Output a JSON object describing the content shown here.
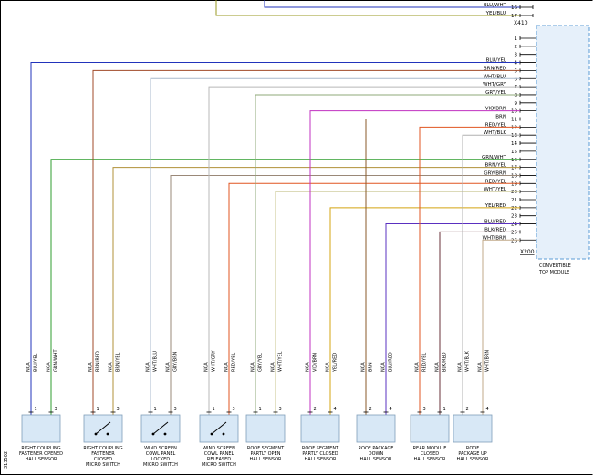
{
  "doc_number": "313502",
  "top_connector": {
    "label": "X410",
    "pins": [
      {
        "num": "16",
        "color": "BLU/WHT"
      },
      {
        "num": "17",
        "color": "YEL/BLU"
      }
    ]
  },
  "module": {
    "label_lines": [
      "CONVERTIBLE",
      "TOP MODULE"
    ],
    "connector_label": "X200",
    "pins": [
      {
        "num": "1",
        "color": ""
      },
      {
        "num": "2",
        "color": ""
      },
      {
        "num": "3",
        "color": ""
      },
      {
        "num": "4",
        "color": "BLU/YEL"
      },
      {
        "num": "5",
        "color": "BRN/RED"
      },
      {
        "num": "6",
        "color": "WHT/BLU"
      },
      {
        "num": "7",
        "color": "WHT/GRY"
      },
      {
        "num": "8",
        "color": "GRY/YEL"
      },
      {
        "num": "9",
        "color": ""
      },
      {
        "num": "10",
        "color": "VIO/BRN"
      },
      {
        "num": "11",
        "color": "BRN"
      },
      {
        "num": "12",
        "color": "RED/YEL"
      },
      {
        "num": "13",
        "color": "WHT/BLK"
      },
      {
        "num": "14",
        "color": ""
      },
      {
        "num": "15",
        "color": ""
      },
      {
        "num": "16",
        "color": "GRN/WHT"
      },
      {
        "num": "17",
        "color": "BRN/YEL"
      },
      {
        "num": "18",
        "color": "GRY/BRN"
      },
      {
        "num": "19",
        "color": "RED/YEL"
      },
      {
        "num": "20",
        "color": "WHT/YEL"
      },
      {
        "num": "21",
        "color": ""
      },
      {
        "num": "22",
        "color": "YEL/RED"
      },
      {
        "num": "23",
        "color": ""
      },
      {
        "num": "24",
        "color": "BLU/RED"
      },
      {
        "num": "25",
        "color": "BLK/RED"
      },
      {
        "num": "26",
        "color": "WHT/BRN"
      }
    ]
  },
  "components": [
    {
      "id": "right-coupling-fastener-opened-hall-sensor",
      "type": "hall-sensor",
      "label_lines": [
        "RIGHT COUPLING",
        "FASTENER OPENED",
        "HALL SENSOR"
      ],
      "wires": [
        {
          "pin": "1",
          "size": "NCA",
          "color": "BLU/YEL",
          "module_pin": 4
        },
        {
          "pin": "3",
          "size": "NCA",
          "color": "GRN/WHT",
          "module_pin": 16
        }
      ]
    },
    {
      "id": "right-coupling-fastener-closed-micro-switch",
      "type": "micro-switch",
      "label_lines": [
        "RIGHT COUPLING",
        "FASTENER",
        "CLOSED",
        "MICRO SWITCH"
      ],
      "wires": [
        {
          "pin": "1",
          "size": "NCA",
          "color": "BRN/RED",
          "module_pin": 5
        },
        {
          "pin": "3",
          "size": "NCA",
          "color": "BRN/YEL",
          "module_pin": 17
        }
      ]
    },
    {
      "id": "wind-screen-cowl-panel-locked-micro-switch",
      "type": "micro-switch",
      "label_lines": [
        "WIND SCREEN",
        "COWL PANEL",
        "LOCKED",
        "MICRO SWITCH"
      ],
      "wires": [
        {
          "pin": "1",
          "size": "NCA",
          "color": "WHT/BLU",
          "module_pin": 6
        },
        {
          "pin": "3",
          "size": "NCA",
          "color": "GRY/BRN",
          "module_pin": 18
        }
      ]
    },
    {
      "id": "wind-screen-cowl-panel-released-micro-switch",
      "type": "micro-switch",
      "label_lines": [
        "WIND SCREEN",
        "COWL PANEL",
        "RELEASED",
        "MICRO SWITCH"
      ],
      "wires": [
        {
          "pin": "1",
          "size": "NCA",
          "color": "WHT/GRY",
          "module_pin": 7
        },
        {
          "pin": "3",
          "size": "NCA",
          "color": "RED/YEL",
          "module_pin": 19
        }
      ]
    },
    {
      "id": "roof-segment-partly-open-hall-sensor",
      "type": "hall-sensor",
      "label_lines": [
        "ROOF SEGMENT",
        "PARTLY OPEN",
        "HALL SENSOR"
      ],
      "wires": [
        {
          "pin": "1",
          "size": "NCA",
          "color": "GRY/YEL",
          "module_pin": 8
        },
        {
          "pin": "3",
          "size": "NCA",
          "color": "WHT/YEL",
          "module_pin": 20
        }
      ]
    },
    {
      "id": "roof-segment-partly-closed-hall-sensor",
      "type": "hall-sensor",
      "label_lines": [
        "ROOF SEGMENT",
        "PARTLY CLOSED",
        "HALL SENSOR"
      ],
      "wires": [
        {
          "pin": "2",
          "size": "NCA",
          "color": "VIO/BRN",
          "module_pin": 10
        },
        {
          "pin": "4",
          "size": "NCA",
          "color": "YEL/RED",
          "module_pin": 22
        }
      ]
    },
    {
      "id": "roof-package-down-hall-sensor",
      "type": "hall-sensor",
      "label_lines": [
        "ROOF PACKAGE",
        "DOWN",
        "HALL SENSOR"
      ],
      "wires": [
        {
          "pin": "2",
          "size": "NCA",
          "color": "BRN",
          "module_pin": 11
        },
        {
          "pin": "4",
          "size": "NCA",
          "color": "BLU/RED",
          "module_pin": 24
        }
      ]
    },
    {
      "id": "rear-module-closed-hall-sensor",
      "type": "hall-sensor",
      "label_lines": [
        "REAR MODULE",
        "CLOSED",
        "HALL SENSOR"
      ],
      "wires": [
        {
          "pin": "3",
          "size": "NCA",
          "color": "RED/YEL",
          "module_pin": 12
        },
        {
          "pin": "1",
          "size": "NCA",
          "color": "BLK/RED",
          "module_pin": 25
        }
      ]
    },
    {
      "id": "roof-package-up-hall-sensor",
      "type": "hall-sensor",
      "label_lines": [
        "ROOF",
        "PACKAGE UP",
        "HALL SENSOR"
      ],
      "wires": [
        {
          "pin": "2",
          "size": "NCA",
          "color": "WHT/BLK",
          "module_pin": 13
        },
        {
          "pin": "4",
          "size": "NCA",
          "color": "WHT/BRN",
          "module_pin": 26
        }
      ]
    }
  ],
  "wire_colors": {
    "BLU/WHT": "#2233bb",
    "YEL/BLU": "#9a9a22",
    "BLU/YEL": "#2233bb",
    "GRN/WHT": "#2f9e2f",
    "BRN/RED": "#a04a28",
    "BRN/YEL": "#b09038",
    "WHT/BLU": "#a8b8cc",
    "GRY/BRN": "#9a8878",
    "WHT/GRY": "#b8b8b8",
    "RED/YEL": "#e05520",
    "GRY/YEL": "#8fa878",
    "WHT/YEL": "#c8c48e",
    "VIO/BRN": "#c030c0",
    "YEL/RED": "#d4a410",
    "BRN": "#8a5a28",
    "BLU/RED": "#5a30c0",
    "BLK/RED": "#6a3038",
    "WHT/BLK": "#b0b0b0",
    "WHT/BRN": "#c0a888"
  },
  "ui_colors": {
    "component_fill": "#d8e8f6",
    "component_stroke": "#7f9db9",
    "module_fill": "#e6f0fa",
    "module_stroke": "#5b9bd5"
  }
}
